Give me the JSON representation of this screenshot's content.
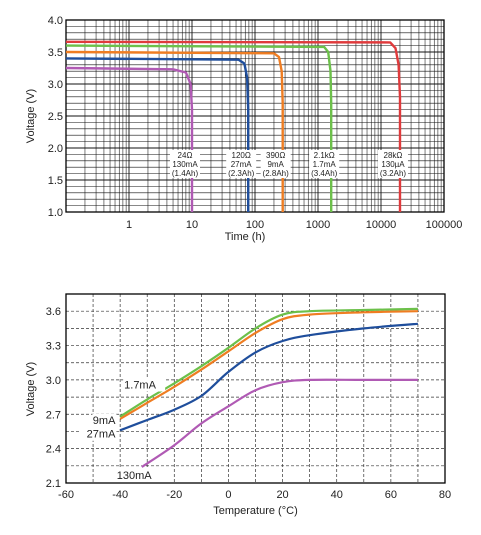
{
  "chart_data": [
    {
      "type": "line",
      "xlabel": "Time (h)",
      "ylabel": "Voltage (V)",
      "xscale": "log",
      "xlim": [
        0.1,
        100000
      ],
      "ylim": [
        1.0,
        4.0
      ],
      "xticks": [
        "1",
        "10",
        "100",
        "1000",
        "10000",
        "100000"
      ],
      "yticks": [
        "1.0",
        "1.5",
        "2.0",
        "2.5",
        "3.0",
        "3.5",
        "4.0"
      ],
      "grid": true,
      "series": [
        {
          "color": "#b05ab4",
          "annotation": [
            "24Ω",
            "130mA",
            "(1.4Ah)"
          ],
          "points": [
            [
              0.1,
              3.25
            ],
            [
              5,
              3.23
            ],
            [
              8,
              3.18
            ],
            [
              9.5,
              3.0
            ],
            [
              10,
              2.6
            ],
            [
              10,
              1.0
            ]
          ]
        },
        {
          "color": "#1f4e9c",
          "annotation": [
            "120Ω",
            "27mA",
            "(2.3Ah)"
          ],
          "points": [
            [
              0.1,
              3.4
            ],
            [
              55,
              3.38
            ],
            [
              68,
              3.32
            ],
            [
              75,
              3.1
            ],
            [
              78,
              2.6
            ],
            [
              78,
              1.0
            ]
          ]
        },
        {
          "color": "#ef7d22",
          "annotation": [
            "390Ω",
            "9mA",
            "(2.8Ah)"
          ],
          "points": [
            [
              0.1,
              3.5
            ],
            [
              200,
              3.48
            ],
            [
              240,
              3.42
            ],
            [
              265,
              3.2
            ],
            [
              275,
              2.7
            ],
            [
              275,
              1.0
            ]
          ]
        },
        {
          "color": "#6cc04a",
          "annotation": [
            "2.1kΩ",
            "1.7mA",
            "(3.4Ah)"
          ],
          "points": [
            [
              0.1,
              3.6
            ],
            [
              1250,
              3.58
            ],
            [
              1450,
              3.5
            ],
            [
              1580,
              3.2
            ],
            [
              1620,
              2.7
            ],
            [
              1620,
              1.0
            ]
          ]
        },
        {
          "color": "#e03a3c",
          "annotation": [
            "28kΩ",
            "130µA",
            "(3.2Ah)"
          ],
          "points": [
            [
              0.1,
              3.66
            ],
            [
              14000,
              3.65
            ],
            [
              17000,
              3.56
            ],
            [
              19000,
              3.3
            ],
            [
              20000,
              2.8
            ],
            [
              20000,
              1.0
            ]
          ]
        }
      ]
    },
    {
      "type": "line",
      "xlabel": "Temperature (°C)",
      "ylabel": "Voltage (V)",
      "xlim": [
        -60,
        80
      ],
      "ylim": [
        2.1,
        3.75
      ],
      "xticks": [
        "-60",
        "-40",
        "-20",
        "0",
        "20",
        "40",
        "60",
        "80"
      ],
      "yticks": [
        "2.1",
        "2.4",
        "2.7",
        "3.0",
        "3.3",
        "3.6"
      ],
      "grid": true,
      "series": [
        {
          "name": "1.7mA",
          "color": "#6cc04a",
          "points": [
            [
              -40,
              2.68
            ],
            [
              -30,
              2.83
            ],
            [
              -20,
              2.97
            ],
            [
              -10,
              3.12
            ],
            [
              0,
              3.28
            ],
            [
              10,
              3.45
            ],
            [
              20,
              3.57
            ],
            [
              30,
              3.6
            ],
            [
              50,
              3.61
            ],
            [
              70,
              3.62
            ]
          ]
        },
        {
          "name": "9mA",
          "color": "#ef7d22",
          "points": [
            [
              -40,
              2.66
            ],
            [
              -30,
              2.8
            ],
            [
              -20,
              2.94
            ],
            [
              -10,
              3.09
            ],
            [
              0,
              3.25
            ],
            [
              10,
              3.41
            ],
            [
              20,
              3.53
            ],
            [
              30,
              3.57
            ],
            [
              50,
              3.59
            ],
            [
              70,
              3.6
            ]
          ]
        },
        {
          "name": "27mA",
          "color": "#1f4e9c",
          "points": [
            [
              -40,
              2.56
            ],
            [
              -30,
              2.65
            ],
            [
              -20,
              2.74
            ],
            [
              -10,
              2.86
            ],
            [
              0,
              3.07
            ],
            [
              10,
              3.24
            ],
            [
              20,
              3.34
            ],
            [
              30,
              3.39
            ],
            [
              50,
              3.45
            ],
            [
              70,
              3.49
            ]
          ]
        },
        {
          "name": "130mA",
          "color": "#b05ab4",
          "points": [
            [
              -32,
              2.24
            ],
            [
              -20,
              2.43
            ],
            [
              -10,
              2.62
            ],
            [
              0,
              2.77
            ],
            [
              10,
              2.91
            ],
            [
              20,
              2.98
            ],
            [
              30,
              3.0
            ],
            [
              50,
              3.0
            ],
            [
              70,
              3.0
            ]
          ]
        }
      ]
    }
  ]
}
